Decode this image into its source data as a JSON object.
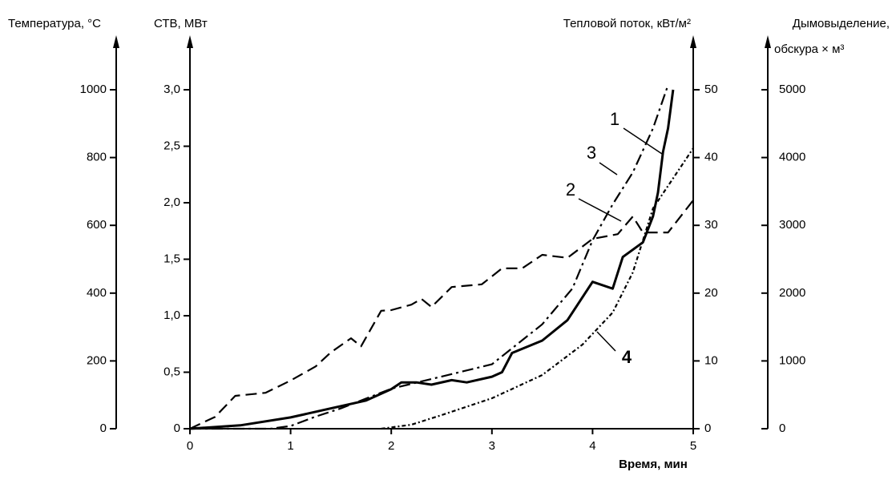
{
  "chart_data": {
    "type": "line",
    "xlabel": "Время, мин",
    "xlim": [
      0,
      5
    ],
    "xticks": [
      0,
      1,
      2,
      3,
      4,
      5
    ],
    "axes": [
      {
        "label": [
          "Температура, °C"
        ],
        "lim": [
          0,
          1000
        ],
        "ticks": [
          0,
          200,
          400,
          600,
          800,
          1000
        ]
      },
      {
        "label": [
          "СТВ, МВт"
        ],
        "lim": [
          0,
          3
        ],
        "ticks": [
          0,
          {
            "value": 0.5,
            "label": "0,5"
          },
          {
            "value": 1,
            "label": "1,0"
          },
          {
            "value": 1.5,
            "label": "1,5"
          },
          {
            "value": 2,
            "label": "2,0"
          },
          {
            "value": 2.5,
            "label": "2,5"
          },
          {
            "value": 3,
            "label": "3,0"
          }
        ]
      },
      {
        "label": [
          "Тепловой поток, кВт/м²"
        ],
        "lim": [
          0,
          50
        ],
        "ticks": [
          0,
          10,
          20,
          30,
          40,
          50
        ]
      },
      {
        "label": [
          "Дымовыделение,",
          "обскура × м³"
        ],
        "lim": [
          0,
          5000
        ],
        "ticks": [
          0,
          1000,
          2000,
          3000,
          4000,
          5000
        ]
      }
    ],
    "series": [
      {
        "name": "1",
        "axis": 1,
        "style": "solid",
        "color": "#000000",
        "x": [
          0,
          0.5,
          1,
          1.5,
          1.75,
          2,
          2.1,
          2.25,
          2.4,
          2.6,
          2.75,
          3,
          3.1,
          3.2,
          3.5,
          3.75,
          4,
          4.2,
          4.3,
          4.5,
          4.6,
          4.65,
          4.7,
          4.75,
          4.8
        ],
        "values": [
          0,
          0.03,
          0.1,
          0.2,
          0.25,
          0.35,
          0.41,
          0.41,
          0.39,
          0.43,
          0.41,
          0.46,
          0.5,
          0.67,
          0.78,
          0.96,
          1.3,
          1.24,
          1.52,
          1.65,
          1.88,
          2.09,
          2.45,
          2.66,
          3.0
        ]
      },
      {
        "name": "2",
        "axis": 0,
        "style": "dashed",
        "color": "#000000",
        "x": [
          0,
          0.25,
          0.45,
          0.75,
          1,
          1.25,
          1.4,
          1.6,
          1.7,
          1.9,
          2,
          2.2,
          2.3,
          2.4,
          2.6,
          2.9,
          3.1,
          3.3,
          3.5,
          3.75,
          4,
          4.25,
          4.4,
          4.5,
          4.75,
          5
        ],
        "values": [
          0,
          35,
          97,
          106,
          142,
          184,
          225,
          267,
          243,
          348,
          350,
          366,
          383,
          359,
          418,
          426,
          473,
          473,
          513,
          504,
          560,
          574,
          626,
          579,
          579,
          674
        ]
      },
      {
        "name": "3",
        "axis": 2,
        "style": "dashdot",
        "color": "#000000",
        "x": [
          0,
          0.8,
          1,
          1.25,
          1.5,
          2,
          2.5,
          3,
          3.5,
          3.8,
          4,
          4.2,
          4.4,
          4.6,
          4.75
        ],
        "values": [
          0,
          0,
          0.4,
          1.8,
          3,
          5.9,
          7.7,
          9.5,
          15.4,
          20.7,
          27.8,
          33.1,
          37.8,
          44.3,
          50.7
        ]
      },
      {
        "name": "4",
        "axis": 3,
        "style": "dotted",
        "color": "#000000",
        "x": [
          1.9,
          2.2,
          2.5,
          3,
          3.5,
          3.9,
          4.2,
          4.4,
          4.6,
          5
        ],
        "values": [
          0,
          59,
          201,
          449,
          792,
          1241,
          1714,
          2305,
          3251,
          4137
        ]
      }
    ]
  }
}
